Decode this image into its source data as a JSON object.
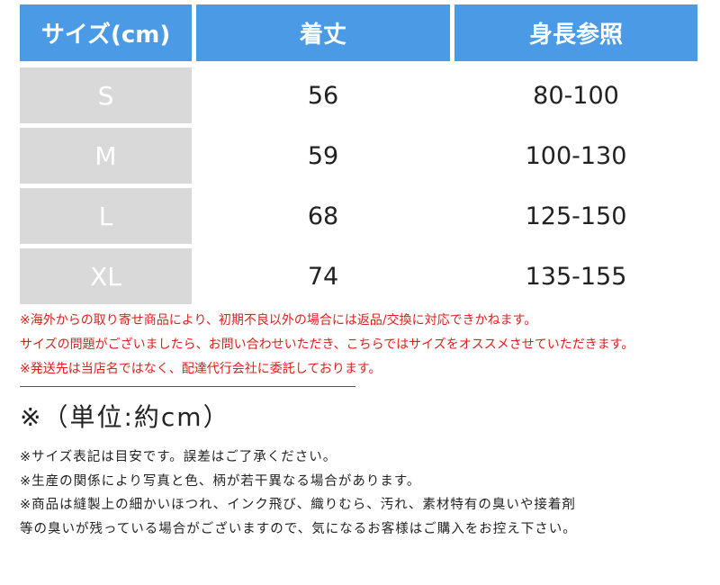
{
  "table": {
    "header": [
      "サイズ(cm)",
      "着丈",
      "身長参照"
    ],
    "rows": [
      [
        "S",
        "56",
        "80-100"
      ],
      [
        "M",
        "59",
        "100-130"
      ],
      [
        "L",
        "68",
        "125-150"
      ],
      [
        "XL",
        "74",
        "135-155"
      ]
    ]
  },
  "warnings": [
    "※海外からの取り寄せ商品により、初期不良以外の場合には返品/交換に対応できかねます。",
    "サイズの問題がございましたら、お問い合わせいただき、こちらではサイズをオススメさせていただきます。",
    "※発送先は当店名ではなく、配達代行会社に委託しております。"
  ],
  "unit": "※（単位:約cm）",
  "notes": [
    "※サイズ表記は目安です。誤差はご了承ください。",
    "※生産の関係により写真と色、柄が若干異なる場合があります。",
    "※商品は縫製上の細かいほつれ、インク飛び、織りむら、汚れ、素材特有の臭いや接着剤",
    "等の臭いが残っている場合がございますので、気になるお客様はご購入をお控え下さい。"
  ]
}
